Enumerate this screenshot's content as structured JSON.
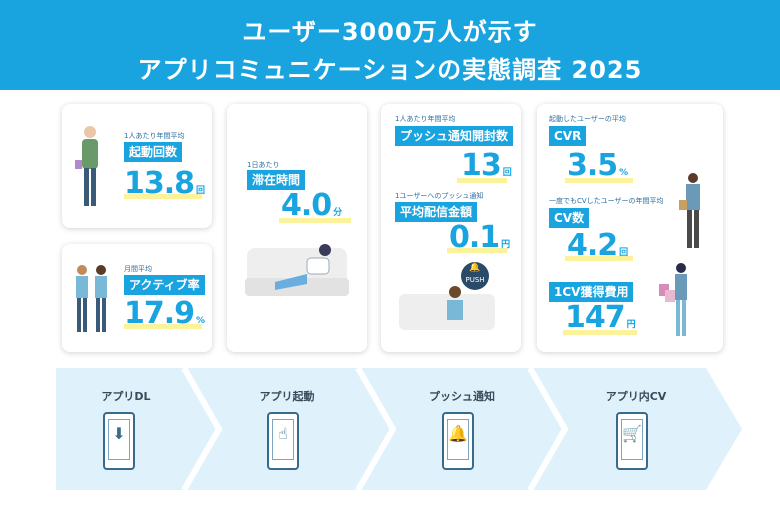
{
  "header": {
    "line1": "ユーザー3000万人が示す",
    "line2": "アプリコミュニケーションの実態調査 2025"
  },
  "metrics": {
    "launches": {
      "caption": "1人あたり年間平均",
      "label": "起動回数",
      "value": "13.8",
      "unit": "回"
    },
    "active": {
      "caption": "月間平均",
      "label": "アクティブ率",
      "value": "17.9",
      "unit": "%"
    },
    "stay": {
      "caption": "1日あたり",
      "label": "滞在時間",
      "value": "4.0",
      "unit": "分"
    },
    "push_open": {
      "caption": "1人あたり年間平均",
      "label": "プッシュ通知開封数",
      "value": "13",
      "unit": "回"
    },
    "push_cost": {
      "caption": "1ユーザーへのプッシュ通知",
      "label": "平均配信金額",
      "value": "0.1",
      "unit": "円"
    },
    "cvr": {
      "caption": "起動したユーザーの平均",
      "label": "CVR",
      "value": "3.5",
      "unit": "%"
    },
    "cv_count": {
      "caption": "一度でもCVしたユーザーの年間平均",
      "label": "CV数",
      "value": "4.2",
      "unit": "回"
    },
    "cpa": {
      "label": "1CV獲得費用",
      "value": "147",
      "unit": "円"
    }
  },
  "push_badge": "PUSH",
  "flow": [
    {
      "label": "アプリDL",
      "icon": "download-icon"
    },
    {
      "label": "アプリ起動",
      "icon": "tap-icon"
    },
    {
      "label": "プッシュ通知",
      "icon": "bell-icon"
    },
    {
      "label": "アプリ内CV",
      "icon": "cart-icon"
    }
  ],
  "colors": {
    "accent": "#19a4e0",
    "highlight": "#fdf29c",
    "flow_bg": "#dff2fb"
  }
}
